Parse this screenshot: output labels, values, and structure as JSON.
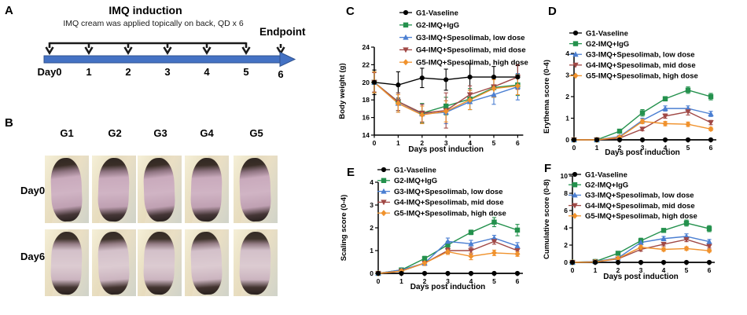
{
  "panels": {
    "a": "A",
    "b": "B",
    "c": "C",
    "d": "D",
    "e": "E",
    "f": "F"
  },
  "panelA": {
    "title": "IMQ induction",
    "subtitle": "IMQ cream was applied topically on back, QD x 6",
    "endpoint_label": "Endpoint",
    "day_labels": [
      "Day0",
      "1",
      "2",
      "3",
      "4",
      "5",
      "6"
    ],
    "arrow_color": "#4472c4"
  },
  "panelB": {
    "group_labels": [
      "G1",
      "G2",
      "G3",
      "G4",
      "G5"
    ],
    "row_labels": [
      "Day0",
      "Day6"
    ]
  },
  "chart_data": [
    {
      "id": "C",
      "type": "line",
      "x": [
        0,
        1,
        2,
        3,
        4,
        5,
        6
      ],
      "xlabel": "Days post induction",
      "ylabel": "Body weight (g)",
      "ylim": [
        14,
        24
      ],
      "yticks": [
        14,
        16,
        18,
        20,
        22,
        24
      ],
      "legend_position": "top-left",
      "grid": false,
      "series": [
        {
          "name": "G1-Vaseline",
          "color": "#000000",
          "marker": "circle",
          "values": [
            20.0,
            19.7,
            20.5,
            20.3,
            20.6,
            20.6,
            20.6
          ],
          "err": [
            1.4,
            1.5,
            1.1,
            1.2,
            1.5,
            1.2,
            1.3
          ]
        },
        {
          "name": "G2-IMQ+IgG",
          "color": "#24914d",
          "marker": "square",
          "values": [
            20.0,
            17.8,
            16.5,
            17.3,
            18.1,
            19.4,
            19.7
          ],
          "err": [
            1.2,
            1.0,
            1.1,
            1.0,
            1.2,
            1.1,
            1.2
          ]
        },
        {
          "name": "G3-IMQ+Spesolimab, low dose",
          "color": "#4b7fd2",
          "marker": "triangle-up",
          "values": [
            20.0,
            17.6,
            16.4,
            16.6,
            17.8,
            18.6,
            19.5
          ],
          "err": [
            1.1,
            1.0,
            1.1,
            1.3,
            0.9,
            1.1,
            1.5
          ]
        },
        {
          "name": "G4-IMQ+Spesolimab, mid dose",
          "color": "#a04845",
          "marker": "triangle-down",
          "values": [
            20.0,
            17.8,
            16.5,
            16.8,
            18.6,
            19.5,
            20.6
          ],
          "err": [
            1.1,
            1.0,
            1.0,
            2.0,
            1.0,
            1.0,
            1.4
          ]
        },
        {
          "name": "G5-IMQ+Spesolimab, high dose",
          "color": "#f0922d",
          "marker": "diamond",
          "values": [
            20.0,
            17.6,
            16.3,
            16.7,
            18.0,
            19.3,
            19.6
          ],
          "err": [
            1.2,
            1.0,
            1.0,
            1.2,
            1.1,
            1.0,
            1.0
          ]
        }
      ]
    },
    {
      "id": "D",
      "type": "line",
      "x": [
        0,
        1,
        2,
        3,
        4,
        5,
        6
      ],
      "xlabel": "Days post induction",
      "ylabel": "Erythema score (0-4)",
      "ylim": [
        0,
        4
      ],
      "yticks": [
        0,
        1,
        2,
        3,
        4
      ],
      "legend_position": "top-left",
      "grid": false,
      "series": [
        {
          "name": "G1-Vaseline",
          "color": "#000000",
          "marker": "circle",
          "values": [
            0,
            0,
            0,
            0,
            0,
            0,
            0
          ],
          "err": [
            0,
            0,
            0,
            0,
            0,
            0,
            0
          ]
        },
        {
          "name": "G2-IMQ+IgG",
          "color": "#24914d",
          "marker": "square",
          "values": [
            0,
            0,
            0.4,
            1.25,
            1.9,
            2.3,
            2.0
          ],
          "err": [
            0,
            0,
            0.08,
            0.15,
            0.1,
            0.15,
            0.15
          ]
        },
        {
          "name": "G3-IMQ+Spesolimab, low dose",
          "color": "#4b7fd2",
          "marker": "triangle-up",
          "values": [
            0,
            0,
            0.15,
            0.9,
            1.45,
            1.45,
            1.2
          ],
          "err": [
            0,
            0,
            0.06,
            0.1,
            0.12,
            0.12,
            0.12
          ]
        },
        {
          "name": "G4-IMQ+Spesolimab, mid dose",
          "color": "#a04845",
          "marker": "triangle-down",
          "values": [
            0,
            0,
            0.08,
            0.5,
            1.1,
            1.3,
            0.8
          ],
          "err": [
            0,
            0,
            0.05,
            0.08,
            0.1,
            0.15,
            0.1
          ]
        },
        {
          "name": "G5-IMQ+Spesolimab, high dose",
          "color": "#f0922d",
          "marker": "diamond",
          "values": [
            0,
            0,
            0.12,
            0.85,
            0.75,
            0.72,
            0.5
          ],
          "err": [
            0,
            0,
            0.05,
            0.1,
            0.1,
            0.1,
            0.08
          ]
        }
      ]
    },
    {
      "id": "E",
      "type": "line",
      "x": [
        0,
        1,
        2,
        3,
        4,
        5,
        6
      ],
      "xlabel": "Days post induction",
      "ylabel": "Scaling score (0-4)",
      "ylim": [
        0,
        4
      ],
      "yticks": [
        0,
        1,
        2,
        3,
        4
      ],
      "legend_position": "top-left",
      "grid": false,
      "series": [
        {
          "name": "G1-Vaseline",
          "color": "#000000",
          "marker": "circle",
          "values": [
            0,
            0,
            0,
            0,
            0,
            0,
            0
          ],
          "err": [
            0,
            0,
            0,
            0,
            0,
            0,
            0
          ]
        },
        {
          "name": "G2-IMQ+IgG",
          "color": "#24914d",
          "marker": "square",
          "values": [
            0,
            0.15,
            0.65,
            1.25,
            1.8,
            2.25,
            1.9
          ],
          "err": [
            0,
            0.06,
            0.1,
            0.15,
            0.1,
            0.2,
            0.25
          ]
        },
        {
          "name": "G3-IMQ+Spesolimab, low dose",
          "color": "#4b7fd2",
          "marker": "triangle-up",
          "values": [
            0,
            0.15,
            0.45,
            1.4,
            1.3,
            1.55,
            1.2
          ],
          "err": [
            0,
            0.06,
            0.1,
            0.15,
            0.15,
            0.12,
            0.15
          ]
        },
        {
          "name": "G4-IMQ+Spesolimab, mid dose",
          "color": "#a04845",
          "marker": "triangle-down",
          "values": [
            0,
            0.1,
            0.45,
            1.0,
            1.0,
            1.4,
            1.0
          ],
          "err": [
            0,
            0.05,
            0.1,
            0.12,
            0.15,
            0.12,
            0.12
          ]
        },
        {
          "name": "G5-IMQ+Spesolimab, high dose",
          "color": "#f0922d",
          "marker": "diamond",
          "values": [
            0,
            0.1,
            0.45,
            0.95,
            0.75,
            0.9,
            0.85
          ],
          "err": [
            0,
            0.05,
            0.1,
            0.12,
            0.15,
            0.12,
            0.1
          ]
        }
      ]
    },
    {
      "id": "F",
      "type": "line",
      "x": [
        0,
        1,
        2,
        3,
        4,
        5,
        6
      ],
      "xlabel": "Days post induction",
      "ylabel": "Cumulative score (0-8)",
      "ylim": [
        0,
        10
      ],
      "yticks": [
        0,
        2,
        4,
        6,
        8,
        10
      ],
      "legend_position": "top-left",
      "grid": false,
      "series": [
        {
          "name": "G1-Vaseline",
          "color": "#000000",
          "marker": "circle",
          "values": [
            0,
            0,
            0,
            0,
            0,
            0,
            0
          ],
          "err": [
            0,
            0,
            0,
            0,
            0,
            0,
            0
          ]
        },
        {
          "name": "G2-IMQ+IgG",
          "color": "#24914d",
          "marker": "square",
          "values": [
            0,
            0.1,
            1.05,
            2.5,
            3.7,
            4.55,
            3.9
          ],
          "err": [
            0,
            0.05,
            0.15,
            0.3,
            0.2,
            0.35,
            0.35
          ]
        },
        {
          "name": "G3-IMQ+Spesolimab, low dose",
          "color": "#4b7fd2",
          "marker": "triangle-up",
          "values": [
            0,
            0.1,
            0.5,
            2.3,
            2.75,
            3.0,
            2.4
          ],
          "err": [
            0,
            0.05,
            0.1,
            0.2,
            0.25,
            0.3,
            0.25
          ]
        },
        {
          "name": "G4-IMQ+Spesolimab, mid dose",
          "color": "#a04845",
          "marker": "triangle-down",
          "values": [
            0,
            0.05,
            0.4,
            1.5,
            2.1,
            2.65,
            1.85
          ],
          "err": [
            0,
            0.05,
            0.1,
            0.2,
            0.2,
            0.25,
            0.2
          ]
        },
        {
          "name": "G5-IMQ+Spesolimab, high dose",
          "color": "#f0922d",
          "marker": "diamond",
          "values": [
            0,
            0.05,
            0.45,
            1.75,
            1.5,
            1.6,
            1.35
          ],
          "err": [
            0,
            0.05,
            0.1,
            0.25,
            0.2,
            0.2,
            0.15
          ]
        }
      ]
    }
  ]
}
